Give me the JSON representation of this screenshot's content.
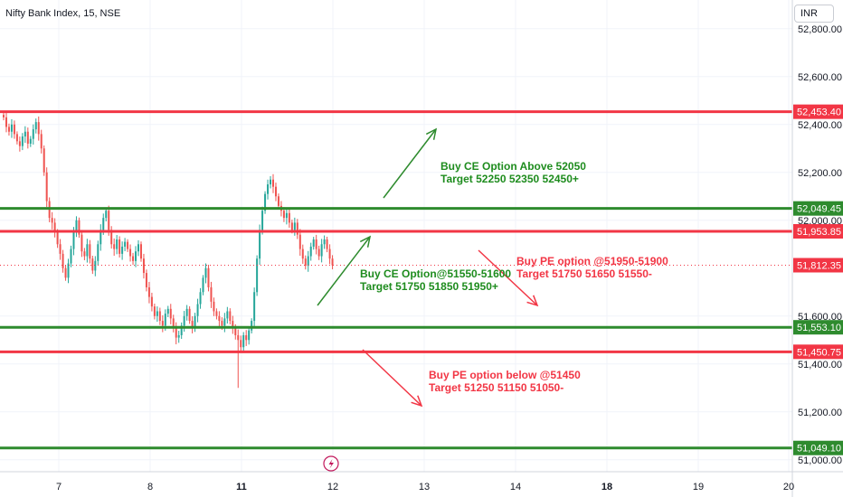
{
  "symbol_title": "Nifty Bank Index, 15, NSE",
  "currency_label": "INR",
  "time_scale_icon": "lightning-icon",
  "colors": {
    "up": "#26a69a",
    "down": "#ef5350",
    "green_line": "#2e8b2e",
    "red_line": "#f23645",
    "price_line": "#f23645",
    "green_text": "#1e8c1e",
    "red_text": "#f23645"
  },
  "chart_data": {
    "type": "candlestick",
    "ylim": [
      50950,
      52920
    ],
    "y_ticks": [
      "52,800.00",
      "52,600.00",
      "52,400.00",
      "52,200.00",
      "52,000.00",
      "51,600.00",
      "51,400.00",
      "51,200.00",
      "51,000.00"
    ],
    "y_tick_values": [
      52800,
      52600,
      52400,
      52200,
      52000,
      51600,
      51400,
      51200,
      51000
    ],
    "x_ticks": [
      {
        "label": "7",
        "bold": false
      },
      {
        "label": "8",
        "bold": false
      },
      {
        "label": "11",
        "bold": true
      },
      {
        "label": "12",
        "bold": false
      },
      {
        "label": "13",
        "bold": false
      },
      {
        "label": "14",
        "bold": false
      },
      {
        "label": "18",
        "bold": true
      },
      {
        "label": "19",
        "bold": false
      },
      {
        "label": "20",
        "bold": false
      }
    ],
    "grid": true,
    "levels": [
      {
        "price": 52453.4,
        "label": "52,453.40",
        "color": "red"
      },
      {
        "price": 52049.45,
        "label": "52,049.45",
        "color": "green"
      },
      {
        "price": 51953.85,
        "label": "51,953.85",
        "color": "red"
      },
      {
        "price": 51553.1,
        "label": "51,553.10",
        "color": "green"
      },
      {
        "price": 51450.75,
        "label": "51,450.75",
        "color": "red"
      },
      {
        "price": 51049.1,
        "label": "51,049.10",
        "color": "green"
      }
    ],
    "last_price": {
      "price": 51812.35,
      "label": "51,812.35"
    },
    "closes": [
      52430,
      52390,
      52370,
      52400,
      52360,
      52330,
      52310,
      52350,
      52370,
      52320,
      52340,
      52380,
      52410,
      52360,
      52300,
      52200,
      52080,
      52010,
      51990,
      51950,
      51900,
      51860,
      51800,
      51760,
      51820,
      51880,
      51950,
      52000,
      51940,
      51870,
      51850,
      51900,
      51840,
      51790,
      51830,
      51900,
      51960,
      52010,
      52040,
      51960,
      51900,
      51880,
      51920,
      51860,
      51890,
      51910,
      51880,
      51850,
      51830,
      51870,
      51900,
      51840,
      51780,
      51720,
      51680,
      51640,
      51600,
      51620,
      51580,
      51560,
      51610,
      51630,
      51590,
      51550,
      51510,
      51520,
      51560,
      51600,
      51630,
      51580,
      51550,
      51600,
      51650,
      51700,
      51760,
      51800,
      51720,
      51660,
      51620,
      51600,
      51580,
      51560,
      51590,
      51620,
      51580,
      51550,
      51520,
      51500,
      51470,
      51520,
      51500,
      51540,
      51580,
      51700,
      51840,
      51960,
      52040,
      52110,
      52150,
      52170,
      52140,
      52100,
      52060,
      52040,
      52010,
      52030,
      51990,
      51960,
      51990,
      51940,
      51880,
      51840,
      51810,
      51850,
      51890,
      51920,
      51880,
      51850,
      51900,
      51920,
      51880,
      51840,
      51812
    ]
  },
  "annotations": {
    "buy_ce_above": {
      "line1": "Buy CE Option Above 52050",
      "line2": "Target 52250 52350 52450+"
    },
    "buy_ce_range": {
      "line1": "Buy CE Option@51550-51600",
      "line2": "Target 51750 51850 51950+"
    },
    "buy_pe_range": {
      "line1": "Buy PE option @51950-51900",
      "line2": "Target 51750 51650 51550-"
    },
    "buy_pe_below": {
      "line1": "Buy PE option below @51450",
      "line2": "Target 51250 51150 51050-"
    }
  }
}
